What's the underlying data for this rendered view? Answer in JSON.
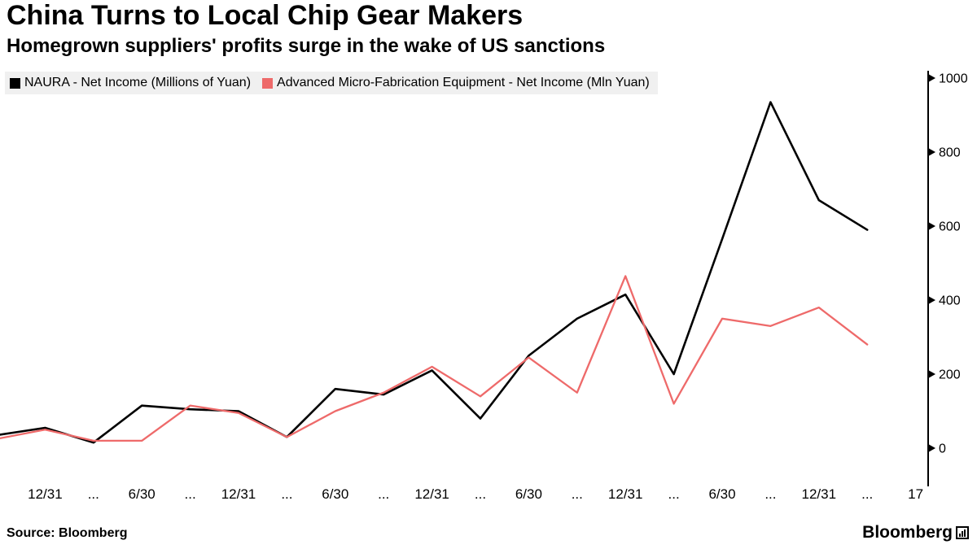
{
  "title": "China Turns to Local Chip Gear Makers",
  "subtitle": "Homegrown suppliers' profits surge in the wake of US sanctions",
  "source": "Source: Bloomberg",
  "brand": "Bloomberg",
  "colors": {
    "background": "#ffffff",
    "legend_background": "#f0f0f0",
    "naura_line": "#000000",
    "amec_line": "#ee6a6a",
    "axis": "#000000"
  },
  "chart_data": {
    "type": "line",
    "title": "China Turns to Local Chip Gear Makers",
    "subtitle": "Homegrown suppliers' profits surge in the wake of US sanctions",
    "xlabel": "",
    "ylabel": "Net Income (Millions of Yuan)",
    "y_axis_side": "right",
    "grid": false,
    "legend_position": "top-left",
    "ylim": [
      0,
      1040
    ],
    "y_ticks": [
      0,
      200,
      400,
      600,
      800,
      1000
    ],
    "x_tick_labels": [
      "12/31",
      "...",
      "6/30",
      "...",
      "12/31",
      "...",
      "6/30",
      "...",
      "12/31",
      "...",
      "6/30",
      "...",
      "12/31",
      "...",
      "6/30",
      "...",
      "12/31",
      "...",
      "17"
    ],
    "series": [
      {
        "id": "naura",
        "name": "NAURA - Net Income (Millions of Yuan)",
        "color": "#000000",
        "width": 2.6,
        "values": [
          35,
          55,
          15,
          115,
          105,
          100,
          30,
          160,
          145,
          210,
          80,
          250,
          350,
          415,
          200,
          565,
          935,
          670,
          590
        ]
      },
      {
        "id": "amec",
        "name": "Advanced Micro-Fabrication Equipment - Net Income (Mln Yuan)",
        "color": "#ee6a6a",
        "width": 2.3,
        "values": [
          25,
          50,
          20,
          20,
          115,
          95,
          30,
          100,
          150,
          220,
          140,
          245,
          150,
          465,
          120,
          350,
          330,
          380,
          280
        ]
      }
    ]
  }
}
